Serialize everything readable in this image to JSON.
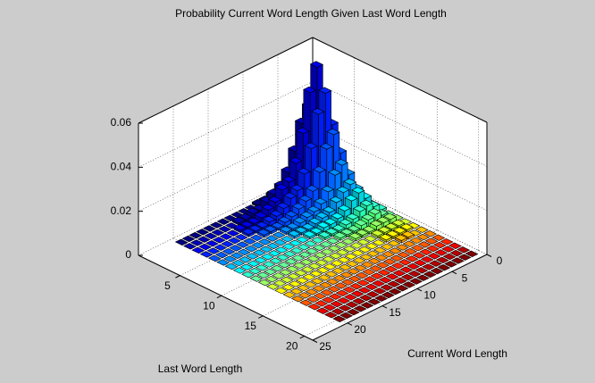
{
  "chart_data": {
    "type": "bar3",
    "title": "Probability Current Word Length Given Last Word Length",
    "xlabel": "Current Word Length",
    "ylabel": "Last Word Length",
    "xlim": [
      0,
      25
    ],
    "xticks": [
      0,
      5,
      10,
      15,
      20,
      25
    ],
    "ylim": [
      0,
      21
    ],
    "yticks": [
      5,
      10,
      15,
      20
    ],
    "zlim": [
      0,
      0.06
    ],
    "zticks": [
      0,
      0.02,
      0.04,
      0.06
    ],
    "grid": true,
    "colormap": "jet",
    "z": [
      [
        0.001,
        0.005,
        0.007,
        0.006,
        0.004,
        0.002,
        0.002,
        0.001,
        0.001,
        0,
        0,
        0,
        0,
        0,
        0,
        0,
        0,
        0,
        0,
        0
      ],
      [
        0.005,
        0.026,
        0.038,
        0.032,
        0.021,
        0.013,
        0.008,
        0.006,
        0.004,
        0.002,
        0.002,
        0.001,
        0.001,
        0,
        0,
        0,
        0,
        0,
        0,
        0
      ],
      [
        0.007,
        0.038,
        0.058,
        0.048,
        0.031,
        0.019,
        0.012,
        0.01,
        0.006,
        0.004,
        0.002,
        0.001,
        0.001,
        0.001,
        0,
        0,
        0,
        0,
        0,
        0
      ],
      [
        0.006,
        0.032,
        0.048,
        0.04,
        0.026,
        0.016,
        0.01,
        0.008,
        0.005,
        0.003,
        0.002,
        0.001,
        0.001,
        0.001,
        0,
        0,
        0,
        0,
        0,
        0
      ],
      [
        0.004,
        0.021,
        0.031,
        0.026,
        0.017,
        0.01,
        0.007,
        0.005,
        0.003,
        0.002,
        0.001,
        0.001,
        0.001,
        0,
        0,
        0,
        0,
        0,
        0,
        0
      ],
      [
        0.002,
        0.013,
        0.019,
        0.016,
        0.01,
        0.006,
        0.004,
        0.003,
        0.002,
        0.001,
        0.001,
        0,
        0,
        0,
        0,
        0,
        0,
        0,
        0,
        0
      ],
      [
        0.002,
        0.008,
        0.012,
        0.01,
        0.007,
        0.004,
        0.003,
        0.002,
        0.001,
        0.001,
        0.001,
        0,
        0,
        0,
        0,
        0,
        0,
        0,
        0,
        0
      ],
      [
        0.001,
        0.006,
        0.01,
        0.008,
        0.005,
        0.003,
        0.002,
        0.002,
        0.001,
        0.001,
        0,
        0,
        0,
        0,
        0,
        0,
        0,
        0,
        0,
        0
      ],
      [
        0.001,
        0.004,
        0.006,
        0.005,
        0.003,
        0.002,
        0.001,
        0.001,
        0.001,
        0,
        0,
        0,
        0,
        0,
        0,
        0,
        0,
        0,
        0,
        0
      ],
      [
        0,
        0.002,
        0.004,
        0.003,
        0.002,
        0.001,
        0.001,
        0.001,
        0,
        0,
        0,
        0,
        0,
        0,
        0,
        0,
        0,
        0,
        0,
        0
      ],
      [
        0,
        0.002,
        0.002,
        0.002,
        0.001,
        0.001,
        0.001,
        0,
        0,
        0,
        0,
        0,
        0,
        0,
        0,
        0,
        0,
        0,
        0,
        0
      ],
      [
        0,
        0.001,
        0.001,
        0.001,
        0.001,
        0,
        0,
        0,
        0,
        0,
        0,
        0,
        0,
        0,
        0,
        0,
        0,
        0,
        0,
        0
      ],
      [
        0,
        0.001,
        0.001,
        0.001,
        0.001,
        0,
        0,
        0,
        0,
        0,
        0,
        0,
        0,
        0,
        0,
        0,
        0,
        0,
        0,
        0
      ],
      [
        0,
        0,
        0.001,
        0.001,
        0,
        0,
        0,
        0,
        0,
        0,
        0,
        0,
        0,
        0,
        0,
        0,
        0,
        0,
        0,
        0
      ],
      [
        0,
        0,
        0,
        0,
        0,
        0,
        0,
        0,
        0,
        0,
        0,
        0,
        0,
        0,
        0,
        0,
        0,
        0,
        0,
        0
      ],
      [
        0,
        0,
        0,
        0,
        0,
        0,
        0,
        0,
        0,
        0,
        0,
        0,
        0,
        0,
        0,
        0,
        0,
        0,
        0,
        0
      ],
      [
        0,
        0,
        0,
        0,
        0,
        0,
        0,
        0,
        0,
        0,
        0,
        0,
        0,
        0,
        0,
        0,
        0,
        0,
        0,
        0
      ],
      [
        0,
        0,
        0,
        0,
        0,
        0,
        0,
        0,
        0,
        0,
        0,
        0,
        0,
        0,
        0,
        0,
        0,
        0,
        0,
        0
      ],
      [
        0,
        0,
        0,
        0,
        0,
        0,
        0,
        0,
        0,
        0,
        0,
        0,
        0,
        0,
        0,
        0,
        0,
        0,
        0,
        0
      ],
      [
        0,
        0,
        0,
        0,
        0,
        0,
        0,
        0,
        0,
        0,
        0,
        0,
        0,
        0,
        0,
        0,
        0,
        0,
        0,
        0
      ]
    ]
  }
}
